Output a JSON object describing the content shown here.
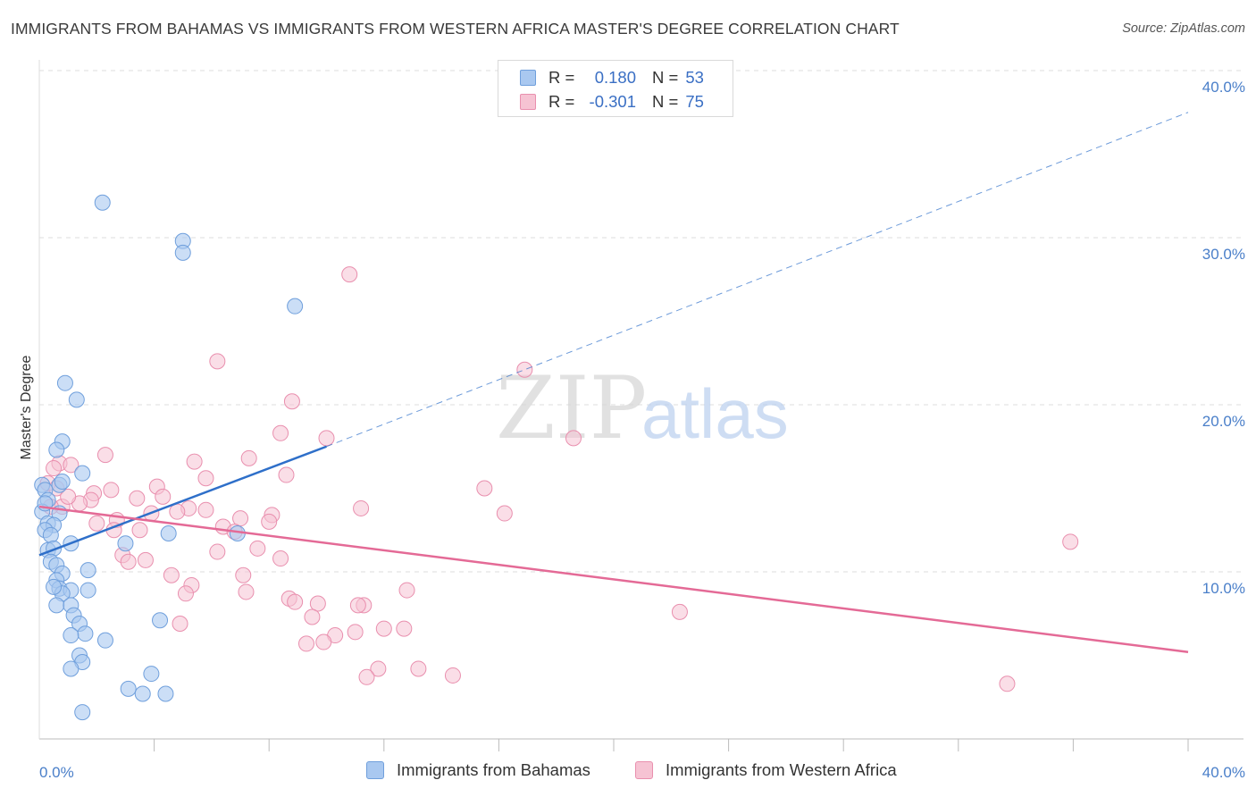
{
  "title": "IMMIGRANTS FROM BAHAMAS VS IMMIGRANTS FROM WESTERN AFRICA MASTER'S DEGREE CORRELATION CHART",
  "source": "Source: ZipAtlas.com",
  "watermark": {
    "zip": "ZIP",
    "atlas": "atlas"
  },
  "colors": {
    "blue_fill": "#a9c8f0",
    "blue_stroke": "#6f9fdc",
    "blue_line": "#2e6fc9",
    "pink_fill": "#f6c3d3",
    "pink_stroke": "#e98fae",
    "pink_line": "#e46a96",
    "tick_text": "#4a7fc9",
    "grid": "#dddddd"
  },
  "legend": {
    "rows": [
      {
        "r_label": "R =",
        "r_value": "0.180",
        "n_label": "N =",
        "n_value": "53"
      },
      {
        "r_label": "R =",
        "r_value": "-0.301",
        "n_label": "N =",
        "n_value": "75"
      }
    ]
  },
  "bottom_legend": [
    "Immigrants from Bahamas",
    "Immigrants from Western Africa"
  ],
  "chart_data": {
    "type": "scatter",
    "title": "IMMIGRANTS FROM BAHAMAS VS IMMIGRANTS FROM WESTERN AFRICA MASTER'S DEGREE CORRELATION CHART",
    "xlabel": "",
    "ylabel": "Master's Degree",
    "xlim": [
      0,
      40
    ],
    "ylim": [
      0,
      40
    ],
    "x_tick_labels": [
      "0.0%",
      "40.0%"
    ],
    "y_ticks": [
      10,
      20,
      30,
      40
    ],
    "y_tick_labels": [
      "10.0%",
      "20.0%",
      "30.0%",
      "40.0%"
    ],
    "grid": true,
    "legend_position": "top-center",
    "series": [
      {
        "name": "Immigrants from Bahamas",
        "r": 0.18,
        "n": 53,
        "trend": {
          "x": [
            0.0,
            10.0
          ],
          "y": [
            11.0,
            17.5
          ],
          "dashed_extension_to": [
            40.0,
            37.5
          ]
        },
        "points": [
          [
            2.2,
            32.1
          ],
          [
            5.0,
            29.8
          ],
          [
            5.0,
            29.1
          ],
          [
            8.9,
            25.9
          ],
          [
            0.9,
            21.3
          ],
          [
            1.3,
            20.3
          ],
          [
            0.8,
            17.8
          ],
          [
            0.6,
            17.3
          ],
          [
            0.7,
            15.2
          ],
          [
            0.1,
            15.2
          ],
          [
            0.2,
            14.9
          ],
          [
            1.5,
            15.9
          ],
          [
            0.3,
            14.3
          ],
          [
            0.1,
            13.6
          ],
          [
            0.7,
            13.5
          ],
          [
            0.3,
            12.9
          ],
          [
            0.5,
            12.8
          ],
          [
            0.2,
            12.5
          ],
          [
            0.4,
            12.2
          ],
          [
            4.5,
            12.3
          ],
          [
            6.9,
            12.3
          ],
          [
            3.0,
            11.7
          ],
          [
            1.1,
            11.7
          ],
          [
            0.3,
            11.3
          ],
          [
            0.5,
            11.4
          ],
          [
            0.4,
            10.6
          ],
          [
            0.6,
            10.4
          ],
          [
            1.7,
            10.1
          ],
          [
            0.8,
            9.9
          ],
          [
            0.6,
            9.5
          ],
          [
            0.7,
            9.0
          ],
          [
            1.1,
            8.9
          ],
          [
            0.8,
            8.7
          ],
          [
            1.7,
            8.9
          ],
          [
            0.6,
            8.0
          ],
          [
            1.1,
            8.0
          ],
          [
            1.2,
            7.4
          ],
          [
            4.2,
            7.1
          ],
          [
            1.4,
            6.9
          ],
          [
            1.6,
            6.3
          ],
          [
            1.1,
            6.2
          ],
          [
            2.3,
            5.9
          ],
          [
            1.4,
            5.0
          ],
          [
            1.5,
            4.6
          ],
          [
            1.1,
            4.2
          ],
          [
            3.9,
            3.9
          ],
          [
            3.1,
            3.0
          ],
          [
            3.6,
            2.7
          ],
          [
            4.4,
            2.7
          ],
          [
            1.5,
            1.6
          ],
          [
            0.8,
            15.4
          ],
          [
            0.2,
            14.1
          ],
          [
            0.5,
            9.1
          ]
        ]
      },
      {
        "name": "Immigrants from Western Africa",
        "r": -0.301,
        "n": 75,
        "trend": {
          "x": [
            0.0,
            40.0
          ],
          "y": [
            13.9,
            5.2
          ]
        },
        "points": [
          [
            10.8,
            27.8
          ],
          [
            6.2,
            22.6
          ],
          [
            16.9,
            22.1
          ],
          [
            8.8,
            20.2
          ],
          [
            8.4,
            18.3
          ],
          [
            10.0,
            18.0
          ],
          [
            18.6,
            18.0
          ],
          [
            2.3,
            17.0
          ],
          [
            7.3,
            16.8
          ],
          [
            5.4,
            16.6
          ],
          [
            0.7,
            16.5
          ],
          [
            1.1,
            16.4
          ],
          [
            0.5,
            16.2
          ],
          [
            8.6,
            15.8
          ],
          [
            5.8,
            15.6
          ],
          [
            0.3,
            15.3
          ],
          [
            4.1,
            15.1
          ],
          [
            15.5,
            15.0
          ],
          [
            0.6,
            15.0
          ],
          [
            2.5,
            14.9
          ],
          [
            1.9,
            14.7
          ],
          [
            4.3,
            14.5
          ],
          [
            3.4,
            14.4
          ],
          [
            1.8,
            14.3
          ],
          [
            1.4,
            14.1
          ],
          [
            0.8,
            13.9
          ],
          [
            11.2,
            13.8
          ],
          [
            5.2,
            13.8
          ],
          [
            5.8,
            13.7
          ],
          [
            16.2,
            13.5
          ],
          [
            8.1,
            13.4
          ],
          [
            7.0,
            13.2
          ],
          [
            3.9,
            13.5
          ],
          [
            2.7,
            13.1
          ],
          [
            8.0,
            13.0
          ],
          [
            2.0,
            12.9
          ],
          [
            6.4,
            12.7
          ],
          [
            3.5,
            12.5
          ],
          [
            6.8,
            12.4
          ],
          [
            2.6,
            12.5
          ],
          [
            35.9,
            11.8
          ],
          [
            7.6,
            11.4
          ],
          [
            6.2,
            11.2
          ],
          [
            2.9,
            11.0
          ],
          [
            3.7,
            10.7
          ],
          [
            8.4,
            10.8
          ],
          [
            3.1,
            10.6
          ],
          [
            7.1,
            9.8
          ],
          [
            4.6,
            9.8
          ],
          [
            5.3,
            9.2
          ],
          [
            12.8,
            8.9
          ],
          [
            7.2,
            8.8
          ],
          [
            5.1,
            8.7
          ],
          [
            8.7,
            8.4
          ],
          [
            8.9,
            8.2
          ],
          [
            9.7,
            8.1
          ],
          [
            11.3,
            8.0
          ],
          [
            11.1,
            8.0
          ],
          [
            22.3,
            7.6
          ],
          [
            9.5,
            7.3
          ],
          [
            4.9,
            6.9
          ],
          [
            12.7,
            6.6
          ],
          [
            12.0,
            6.6
          ],
          [
            11.0,
            6.4
          ],
          [
            10.3,
            6.2
          ],
          [
            9.3,
            5.7
          ],
          [
            9.9,
            5.8
          ],
          [
            11.8,
            4.2
          ],
          [
            13.2,
            4.2
          ],
          [
            11.4,
            3.7
          ],
          [
            14.4,
            3.8
          ],
          [
            33.7,
            3.3
          ],
          [
            1.0,
            14.5
          ],
          [
            4.8,
            13.6
          ],
          [
            0.4,
            13.9
          ]
        ]
      }
    ]
  }
}
